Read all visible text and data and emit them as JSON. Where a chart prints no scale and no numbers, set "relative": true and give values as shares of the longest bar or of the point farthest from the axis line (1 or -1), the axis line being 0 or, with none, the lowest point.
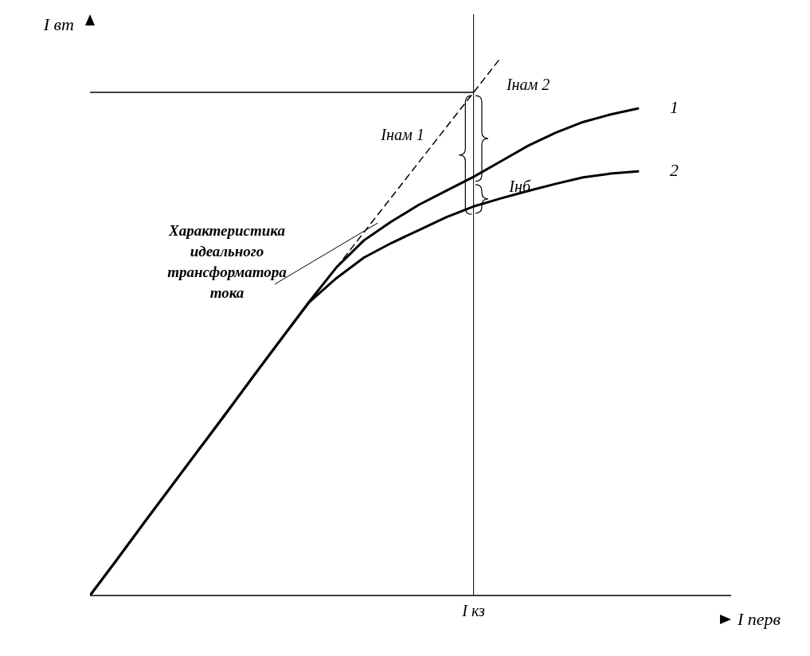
{
  "chart_data": {
    "type": "line",
    "relative": true,
    "xlabel": "I перв",
    "ylabel": "I вт",
    "grid": false,
    "legend": false,
    "categories": [
      null,
      null,
      null,
      null,
      null,
      null,
      null,
      null,
      null,
      null,
      null,
      null,
      null,
      null,
      null,
      null,
      null,
      null,
      null,
      null,
      null
    ],
    "series": [
      {
        "name": "1",
        "color": "#000000",
        "values": [
          0,
          0.068,
          0.137,
          0.205,
          0.273,
          0.341,
          0.41,
          0.478,
          0.546,
          0.61,
          0.66,
          0.695,
          0.726,
          0.752,
          0.778,
          0.807,
          0.836,
          0.86,
          0.88,
          0.894,
          0.905
        ]
      },
      {
        "name": "2",
        "color": "#000000",
        "values": [
          0,
          0.068,
          0.137,
          0.205,
          0.273,
          0.341,
          0.41,
          0.478,
          0.545,
          0.59,
          0.628,
          0.655,
          0.679,
          0.703,
          0.723,
          0.738,
          0.752,
          0.765,
          0.777,
          0.784,
          0.788
        ]
      },
      {
        "color": "#000000",
        "line_style": "dashed",
        "values": [
          null,
          null,
          null,
          null,
          null,
          null,
          null,
          null,
          null,
          0.61,
          0.675,
          0.74,
          0.805,
          0.87,
          0.935,
          1.0,
          null,
          null,
          null,
          null,
          null
        ]
      },
      {
        "color": "#000000",
        "values": [
          0.935,
          0.935,
          0.935,
          0.935,
          0.935,
          0.935,
          0.935,
          0.935,
          0.935,
          0.935,
          0.935,
          0.935,
          0.935,
          0.935,
          0.935,
          null,
          null,
          null,
          null,
          null,
          null
        ]
      }
    ],
    "ref_lines": [
      {
        "axis": "x",
        "label": "I кз",
        "color": "#000000"
      }
    ],
    "annotations": [
      "Характеристика идеального трансформатора тока",
      "Iнам 1",
      "Iнам 2",
      "Iнб"
    ]
  }
}
